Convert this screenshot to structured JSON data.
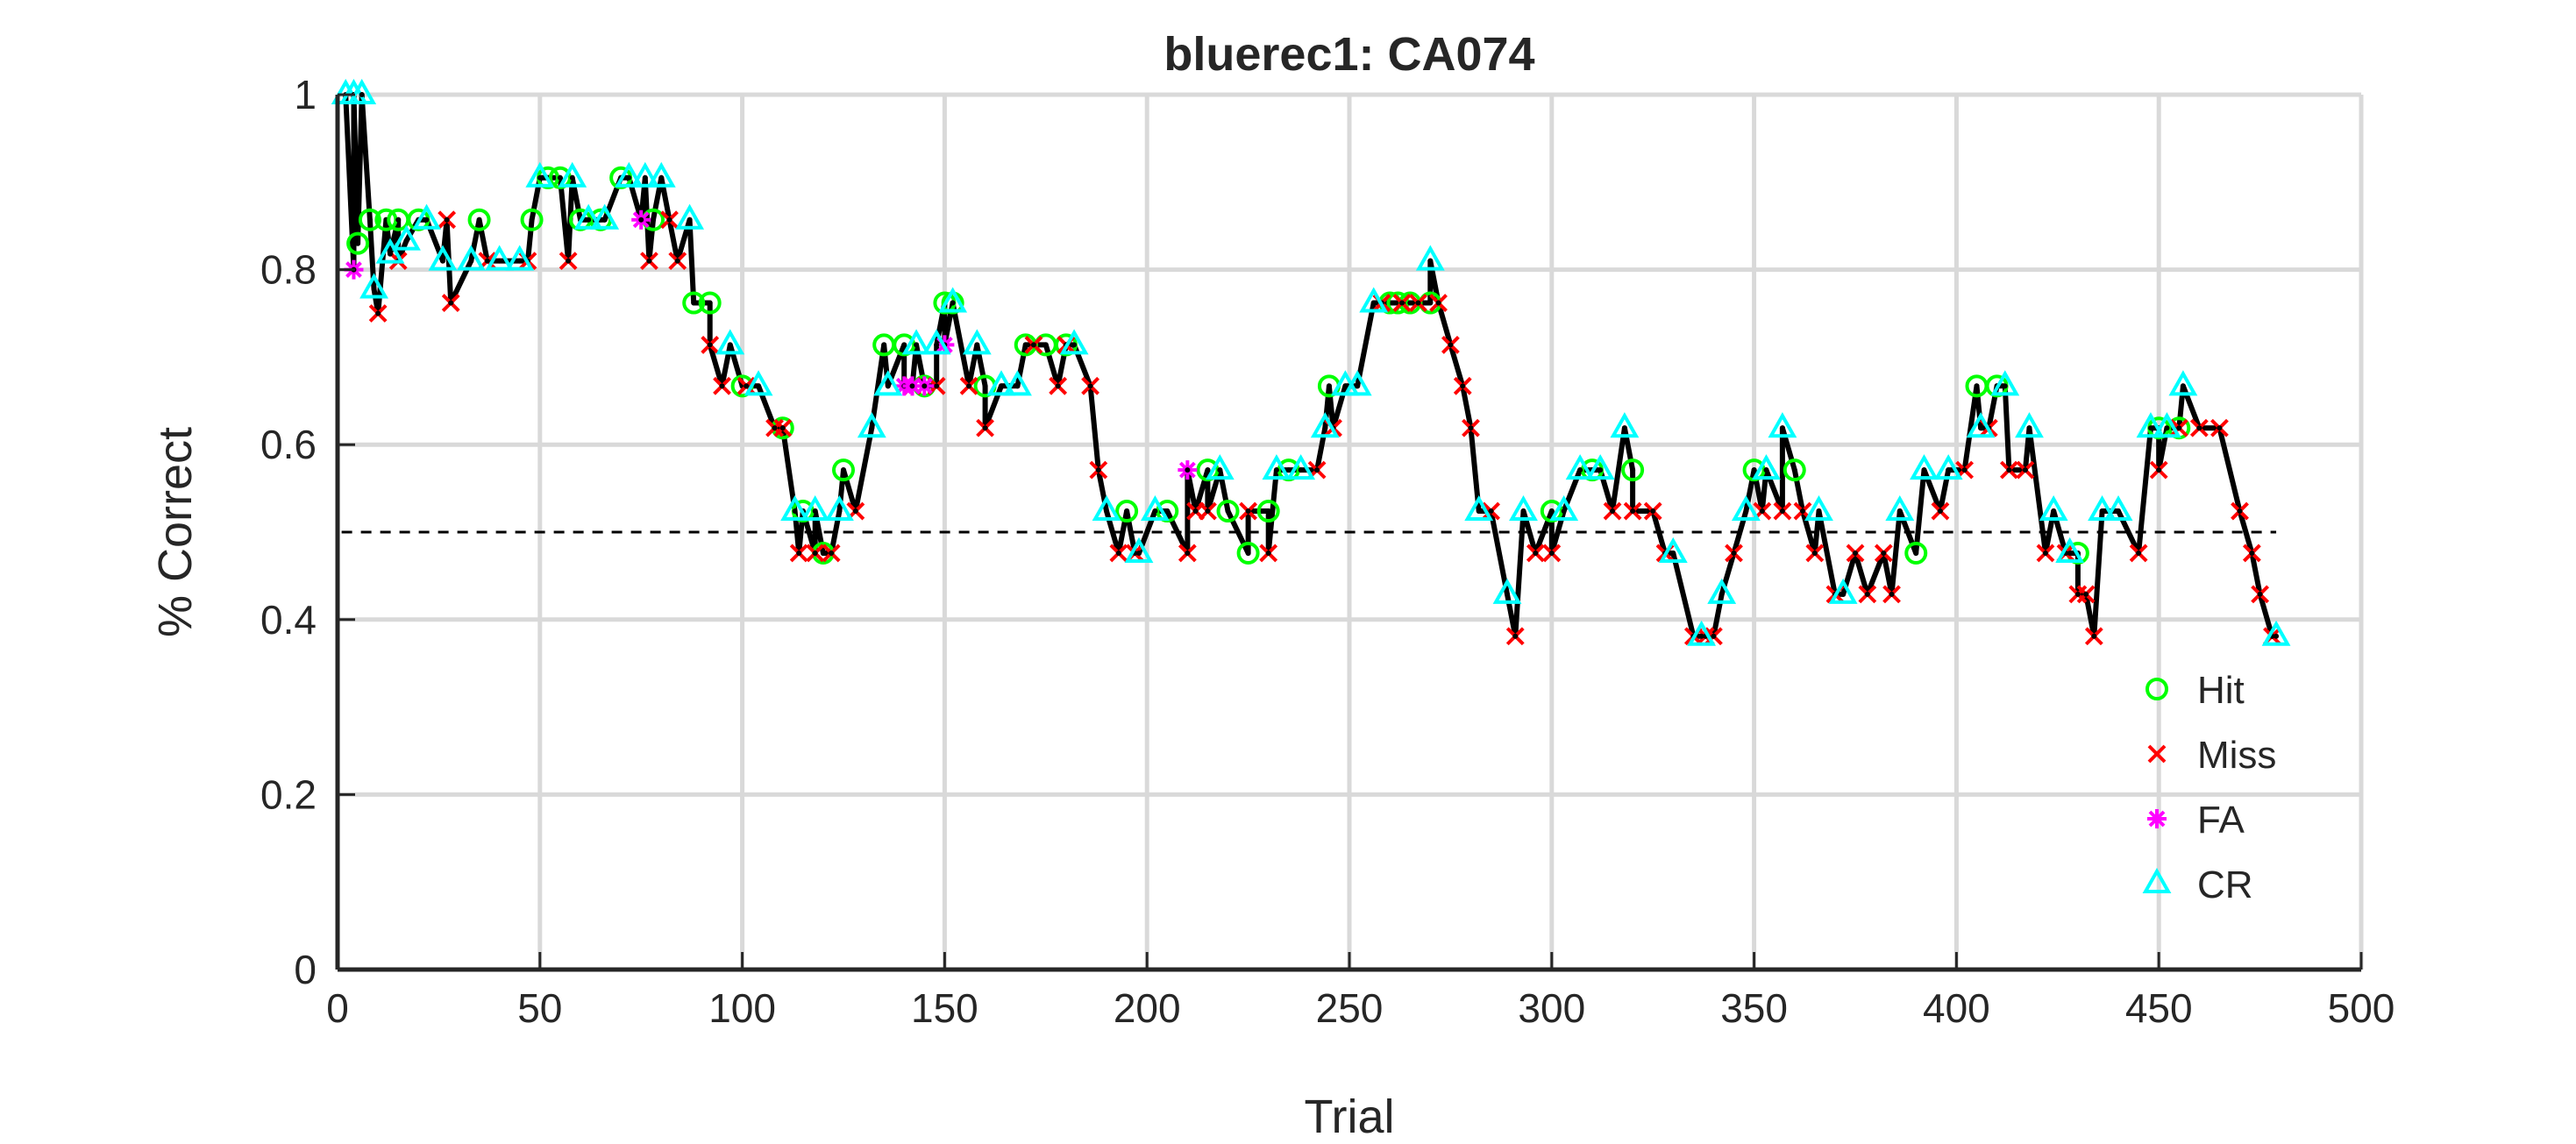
{
  "chart_data": {
    "type": "scatter",
    "title": "bluerec1: CA074",
    "xlabel": "Trial",
    "ylabel": "% Correct",
    "xlim": [
      0,
      500
    ],
    "ylim": [
      0,
      1
    ],
    "xticks": [
      "0",
      "50",
      "100",
      "150",
      "200",
      "250",
      "300",
      "350",
      "400",
      "450",
      "500"
    ],
    "yticks": [
      "0",
      "0.2",
      "0.4",
      "0.6",
      "0.8",
      "1"
    ],
    "grid": true,
    "chance_line": 0.5,
    "legend_position": "lower-right",
    "colors": {
      "line": "#000000",
      "chance": "#000000",
      "grid": "#d9d9d9"
    },
    "series": [
      {
        "name": "Hit",
        "marker": "circle",
        "color": "#00ff00",
        "x": [
          5,
          8,
          12,
          15,
          20,
          35,
          48,
          52,
          55,
          60,
          65,
          70,
          78,
          88,
          92,
          100,
          110,
          115,
          120,
          125,
          135,
          140,
          145,
          150,
          152,
          160,
          170,
          175,
          180,
          195,
          205,
          215,
          220,
          225,
          230,
          235,
          245,
          260,
          262,
          265,
          270,
          300,
          310,
          320,
          350,
          360,
          390,
          405,
          410,
          430,
          450,
          455
        ],
        "y": [
          0.83,
          0.857,
          0.857,
          0.857,
          0.857,
          0.857,
          0.857,
          0.905,
          0.905,
          0.857,
          0.857,
          0.905,
          0.857,
          0.762,
          0.762,
          0.667,
          0.619,
          0.524,
          0.476,
          0.571,
          0.714,
          0.714,
          0.667,
          0.762,
          0.762,
          0.667,
          0.714,
          0.714,
          0.714,
          0.524,
          0.524,
          0.571,
          0.524,
          0.476,
          0.524,
          0.571,
          0.667,
          0.762,
          0.762,
          0.762,
          0.762,
          0.524,
          0.571,
          0.571,
          0.571,
          0.571,
          0.476,
          0.667,
          0.667,
          0.476,
          0.619,
          0.619
        ]
      },
      {
        "name": "Miss",
        "marker": "x",
        "color": "#ff0000",
        "x": [
          10,
          15,
          27,
          28,
          37,
          47,
          57,
          77,
          82,
          84,
          92,
          95,
          101,
          108,
          110,
          114,
          118,
          122,
          128,
          142,
          148,
          156,
          160,
          172,
          178,
          180,
          186,
          188,
          193,
          197,
          210,
          212,
          215,
          225,
          230,
          242,
          246,
          258,
          263,
          267,
          272,
          275,
          278,
          280,
          285,
          291,
          296,
          300,
          315,
          320,
          325,
          328,
          335,
          338,
          340,
          345,
          352,
          357,
          362,
          365,
          370,
          375,
          378,
          382,
          384,
          396,
          402,
          408,
          413,
          417,
          422,
          427,
          430,
          432,
          434,
          445,
          450,
          455,
          460,
          465,
          470,
          473,
          475,
          478
        ],
        "y": [
          0.75,
          0.81,
          0.857,
          0.762,
          0.81,
          0.81,
          0.81,
          0.81,
          0.857,
          0.81,
          0.714,
          0.667,
          0.667,
          0.619,
          0.619,
          0.476,
          0.476,
          0.476,
          0.524,
          0.667,
          0.667,
          0.667,
          0.619,
          0.714,
          0.667,
          0.714,
          0.667,
          0.571,
          0.476,
          0.476,
          0.476,
          0.524,
          0.524,
          0.524,
          0.476,
          0.571,
          0.619,
          0.762,
          0.762,
          0.762,
          0.762,
          0.714,
          0.667,
          0.619,
          0.524,
          0.381,
          0.476,
          0.476,
          0.524,
          0.524,
          0.524,
          0.476,
          0.381,
          0.381,
          0.381,
          0.476,
          0.524,
          0.524,
          0.524,
          0.476,
          0.429,
          0.476,
          0.429,
          0.476,
          0.429,
          0.524,
          0.571,
          0.619,
          0.571,
          0.571,
          0.476,
          0.476,
          0.429,
          0.429,
          0.381,
          0.476,
          0.571,
          0.619,
          0.619,
          0.619,
          0.524,
          0.476,
          0.429,
          0.381
        ]
      },
      {
        "name": "FA",
        "marker": "asterisk",
        "color": "#ff00ff",
        "x": [
          4,
          75,
          140,
          142,
          145,
          150,
          210
        ],
        "y": [
          0.8,
          0.857,
          0.667,
          0.667,
          0.667,
          0.714,
          0.571
        ]
      },
      {
        "name": "CR",
        "marker": "triangle",
        "color": "#00ffff",
        "x": [
          2,
          4,
          6,
          9,
          13,
          17,
          22,
          26,
          33,
          40,
          45,
          50,
          58,
          62,
          66,
          72,
          76,
          80,
          87,
          97,
          104,
          113,
          118,
          124,
          132,
          136,
          143,
          148,
          152,
          158,
          164,
          168,
          182,
          190,
          198,
          202,
          218,
          232,
          238,
          244,
          249,
          252,
          256,
          270,
          282,
          289,
          293,
          303,
          307,
          312,
          318,
          330,
          337,
          342,
          348,
          353,
          357,
          366,
          372,
          386,
          392,
          398,
          406,
          412,
          418,
          424,
          428,
          436,
          440,
          448,
          452,
          456,
          479
        ],
        "y": [
          1.0,
          1.0,
          1.0,
          0.778,
          0.818,
          0.833,
          0.857,
          0.81,
          0.81,
          0.81,
          0.81,
          0.905,
          0.905,
          0.857,
          0.857,
          0.905,
          0.905,
          0.905,
          0.857,
          0.714,
          0.667,
          0.524,
          0.524,
          0.524,
          0.619,
          0.667,
          0.714,
          0.714,
          0.762,
          0.714,
          0.667,
          0.667,
          0.714,
          0.524,
          0.476,
          0.524,
          0.571,
          0.571,
          0.571,
          0.619,
          0.667,
          0.667,
          0.762,
          0.81,
          0.524,
          0.429,
          0.524,
          0.524,
          0.571,
          0.571,
          0.619,
          0.476,
          0.381,
          0.429,
          0.524,
          0.571,
          0.619,
          0.524,
          0.429,
          0.524,
          0.571,
          0.571,
          0.619,
          0.667,
          0.619,
          0.524,
          0.476,
          0.524,
          0.524,
          0.619,
          0.619,
          0.667,
          0.381
        ]
      }
    ]
  }
}
